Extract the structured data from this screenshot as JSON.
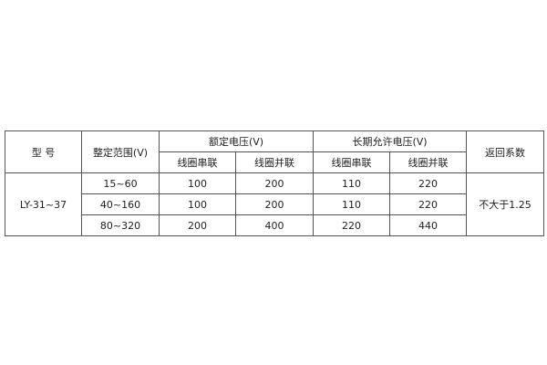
{
  "headers": {
    "model": "型 号",
    "range": "整定范围(V)",
    "rated": "额定电压(V)",
    "longterm": "长期允许电压(V)",
    "return": "返回系数",
    "series": "线圈串联",
    "parallel": "线圈并联"
  },
  "model": "LY-31~37",
  "return_value": "不大于1.25",
  "rows": [
    {
      "range": "15~60",
      "rated_series": "100",
      "rated_parallel": "200",
      "long_series": "110",
      "long_parallel": "220"
    },
    {
      "range": "40~160",
      "rated_series": "100",
      "rated_parallel": "200",
      "long_series": "110",
      "long_parallel": "220"
    },
    {
      "range": "80~320",
      "rated_series": "200",
      "rated_parallel": "400",
      "long_series": "220",
      "long_parallel": "440"
    }
  ]
}
